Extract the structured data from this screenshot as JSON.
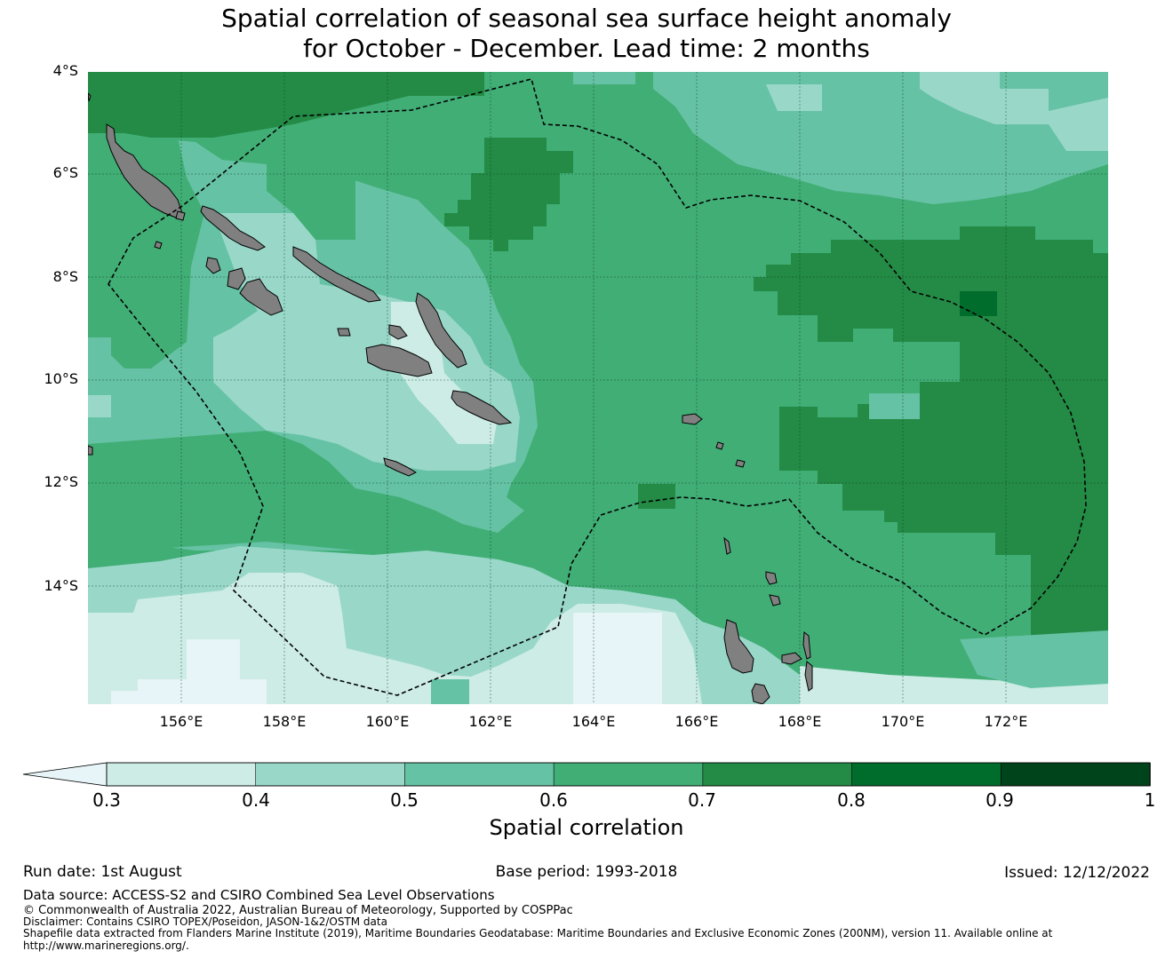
{
  "title_line1": "Spatial correlation of seasonal sea surface height anomaly",
  "title_line2": "for October - December. Lead time: 2 months",
  "map": {
    "lat_labels": [
      "4°S",
      "6°S",
      "8°S",
      "10°S",
      "12°S",
      "14°S"
    ],
    "lon_labels": [
      "156°E",
      "158°E",
      "160°E",
      "162°E",
      "164°E",
      "166°E",
      "168°E",
      "170°E",
      "172°E"
    ],
    "extent": {
      "lon_min": 154.2,
      "lon_max": 174.0,
      "lat_min": -16.3,
      "lat_max": -4.0
    },
    "land_color": "#808080",
    "field_colors_note": "correlation field rendered with colorbar classes"
  },
  "colorbar": {
    "label": "Spatial correlation",
    "ticks": [
      "0.3",
      "0.4",
      "0.5",
      "0.6",
      "0.7",
      "0.8",
      "0.9",
      "1"
    ],
    "under_color": "#e7f4f8",
    "colors": [
      "#cdece5",
      "#99d8c9",
      "#66c2a4",
      "#41ae76",
      "#238b45",
      "#006d2c",
      "#00441b"
    ]
  },
  "footer": {
    "run_date": "Run date: 1st August",
    "base_period": "Base period: 1993-2018",
    "issued": "Issued: 12/12/2022",
    "data_source": "Data source: ACCESS-S2 and CSIRO Combined Sea Level Observations",
    "copyright": "© Commonwealth of Australia 2022, Australian Bureau of Meteorology, Supported by COSPPac",
    "disclaimer": "Disclaimer: Contains CSIRO TOPEX/Poseidon, JASON-1&2/OSTM data",
    "shapefile": "Shapefile data extracted from Flanders Marine Institute (2019), Maritime Boundaries Geodatabase: Maritime Boundaries and Exclusive Economic Zones (200NM), version 11. Available online at",
    "url": "http://www.marineregions.org/."
  }
}
